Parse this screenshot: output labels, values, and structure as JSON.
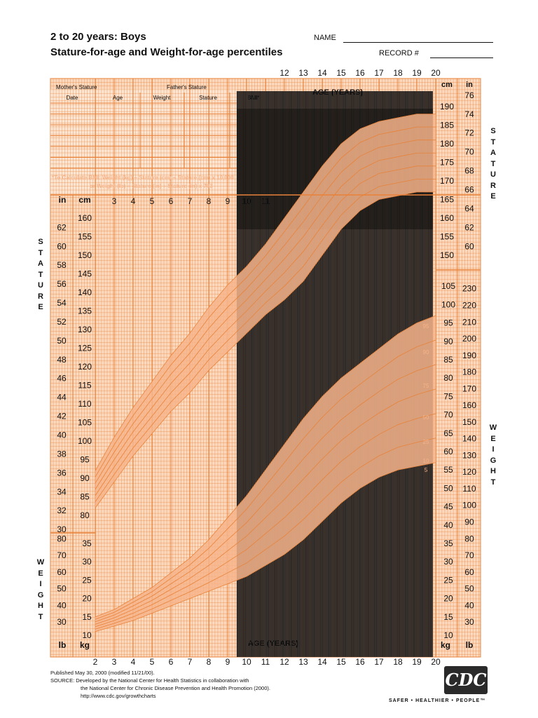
{
  "header": {
    "title_line1": "2 to 20 years: Boys",
    "title_line2": "Stature-for-age and Weight-for-age percentiles",
    "name_label": "NAME",
    "record_label": "RECORD #"
  },
  "table": {
    "mothers_stature": "Mother's Stature",
    "fathers_stature": "Father's Stature",
    "columns": [
      "Date",
      "Age",
      "Weight",
      "Stature",
      "BMI*"
    ],
    "bmi_note_line1": "*To Calculate BMI: Weight (kg) ÷ Stature (cm) ÷ Stature (cm) x 10,000",
    "bmi_note_line2": "or Weight (lb) ÷ Stature (in) ÷ Stature (in) x 703"
  },
  "side_labels": {
    "stature": "STATURE",
    "weight": "WEIGHT"
  },
  "footer": {
    "published": "Published May 30, 2000 (modified 11/21/00).",
    "source_line1": "SOURCE: Developed by the National Center for Health Statistics in collaboration with",
    "source_line2": "the National Center for Chronic Disease Prevention and Health Promotion (2000).",
    "source_line3": "http://www.cdc.gov/growthcharts",
    "logo_text": "CDC",
    "tagline": "SAFER • HEALTHIER • PEOPLE™"
  },
  "colors": {
    "grid": "#e8823a",
    "fill": "#fbd9bf",
    "percentile_fill": "#f6b48a",
    "dark_band": "#1e1e1e"
  },
  "chart_data": {
    "type": "line",
    "title": "Stature-for-age and Weight-for-age percentiles",
    "axis_label_top": "AGE (YEARS)",
    "axis_label_bottom": "AGE (YEARS)",
    "x": [
      2,
      3,
      4,
      5,
      6,
      7,
      8,
      9,
      10,
      11,
      12,
      13,
      14,
      15,
      16,
      17,
      18,
      19,
      20
    ],
    "xlim": [
      2,
      20
    ],
    "top_age_ticks": [
      12,
      13,
      14,
      15,
      16,
      17,
      18,
      19,
      20
    ],
    "bottom_age_ticks": [
      2,
      3,
      4,
      5,
      6,
      7,
      8,
      9,
      10,
      11,
      12,
      13,
      14,
      15,
      16,
      17,
      18,
      19,
      20
    ],
    "mid_age_ticks": [
      3,
      4,
      5,
      6,
      7,
      8,
      9,
      10,
      11
    ],
    "stature_cm_ticks_left": [
      80,
      85,
      90,
      95,
      100,
      105,
      110,
      115,
      120,
      125,
      130,
      135,
      140,
      145,
      150,
      155,
      160
    ],
    "stature_in_ticks_left": [
      30,
      32,
      34,
      36,
      38,
      40,
      42,
      44,
      46,
      48,
      50,
      52,
      54,
      56,
      58,
      60,
      62
    ],
    "stature_cm_ticks_right": [
      150,
      155,
      160,
      165,
      170,
      175,
      180,
      185,
      190
    ],
    "stature_in_ticks_right": [
      60,
      62,
      64,
      66,
      68,
      70,
      72,
      74,
      76
    ],
    "weight_kg_ticks_right": [
      10,
      15,
      20,
      25,
      30,
      35,
      40,
      45,
      50,
      55,
      60,
      65,
      70,
      75,
      80,
      85,
      90,
      95,
      100,
      105
    ],
    "weight_lb_ticks_right": [
      30,
      40,
      50,
      60,
      70,
      80,
      90,
      100,
      110,
      120,
      130,
      140,
      150,
      160,
      170,
      180,
      190,
      200,
      210,
      220,
      230
    ],
    "weight_kg_ticks_left": [
      10,
      15,
      20,
      25,
      30,
      35
    ],
    "weight_lb_ticks_left": [
      30,
      40,
      50,
      60,
      70,
      80
    ],
    "units": {
      "cm": "cm",
      "in": "in",
      "kg": "kg",
      "lb": "lb"
    },
    "weight_percentile_labels": [
      "95",
      "90",
      "75",
      "50",
      "25",
      "10",
      "5"
    ],
    "stature_percentiles": [
      {
        "name": "95",
        "values": [
          92,
          101,
          109,
          116,
          123,
          129,
          136,
          142,
          147,
          153,
          160,
          167,
          174,
          180,
          184,
          186,
          187,
          188,
          188
        ]
      },
      {
        "name": "5",
        "values": [
          82,
          89,
          96,
          102,
          108,
          113,
          119,
          124,
          129,
          134,
          138,
          143,
          150,
          157,
          162,
          165,
          166,
          167,
          167
        ]
      }
    ],
    "weight_percentiles": [
      {
        "name": "95",
        "values": [
          15,
          17,
          20,
          23,
          27,
          31,
          36,
          42,
          48,
          55,
          62,
          69,
          75,
          80,
          84,
          88,
          92,
          95,
          97
        ]
      },
      {
        "name": "5",
        "values": [
          11,
          12.5,
          14,
          16,
          18,
          20,
          22,
          24,
          26,
          29,
          32,
          36,
          41,
          46,
          50,
          53,
          55,
          56,
          57
        ]
      }
    ]
  }
}
